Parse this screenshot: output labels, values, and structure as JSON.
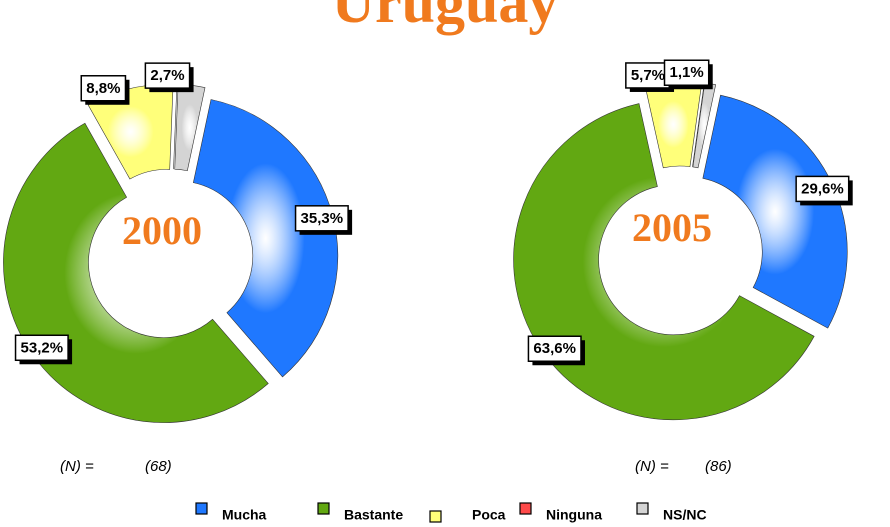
{
  "title": "Uruguay",
  "legend": {
    "categories": [
      "Mucha",
      "Bastante",
      "Poca",
      "Ninguna",
      "NS/NC"
    ],
    "colors": [
      "#1f78ff",
      "#62a812",
      "#ffff7a",
      "#ff4a4a",
      "#d4d4d4"
    ]
  },
  "chart_data": [
    {
      "type": "donut",
      "title": "2000",
      "values": [
        35.3,
        53.2,
        8.8,
        0,
        2.7
      ],
      "value_labels": [
        "35,3%",
        "53,2%",
        "8,8%",
        null,
        "2,7%"
      ],
      "n_label": "(N) =",
      "n_value": "(68)"
    },
    {
      "type": "donut",
      "title": "2005",
      "values": [
        29.6,
        63.6,
        5.7,
        0,
        1.1
      ],
      "value_labels": [
        "29,6%",
        "63,6%",
        "5,7%",
        null,
        "1,1%"
      ],
      "n_label": "(N) =",
      "n_value": "(86)"
    }
  ]
}
